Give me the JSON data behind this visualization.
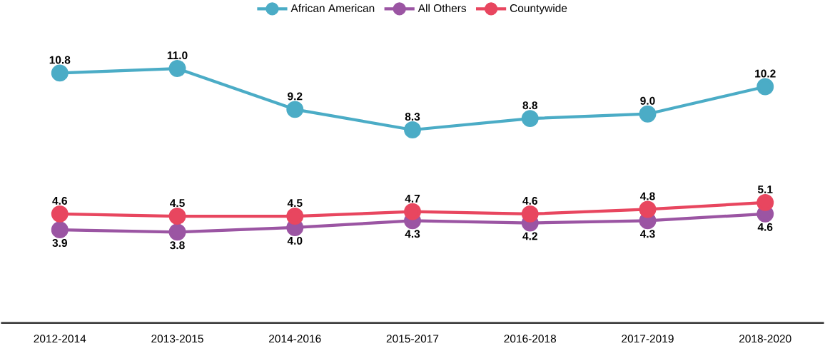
{
  "chart_data": {
    "type": "line",
    "categories": [
      "2012-2014",
      "2013-2015",
      "2014-2016",
      "2015-2017",
      "2016-2018",
      "2017-2019",
      "2018-2020"
    ],
    "series": [
      {
        "name": "African American",
        "color": "#4bacc6",
        "values": [
          10.8,
          11.0,
          9.2,
          8.3,
          8.8,
          9.0,
          10.2
        ],
        "value_labels": [
          "10.8",
          "11.0",
          "9.2",
          "8.3",
          "8.8",
          "9.0",
          "10.2"
        ]
      },
      {
        "name": "All Others",
        "color": "#9b55a3",
        "values": [
          3.9,
          3.8,
          4.0,
          4.3,
          4.2,
          4.3,
          4.6
        ],
        "value_labels": [
          "3.9",
          "3.8",
          "4.0",
          "4.3",
          "4.2",
          "4.3",
          "4.6"
        ]
      },
      {
        "name": "Countywide",
        "color": "#e8465f",
        "values": [
          4.6,
          4.5,
          4.5,
          4.7,
          4.6,
          4.8,
          5.1
        ],
        "value_labels": [
          "4.6",
          "4.5",
          "4.5",
          "4.7",
          "4.6",
          "4.8",
          "5.1"
        ]
      }
    ],
    "legend": "top",
    "marker": "circle",
    "line_style": "solid"
  }
}
